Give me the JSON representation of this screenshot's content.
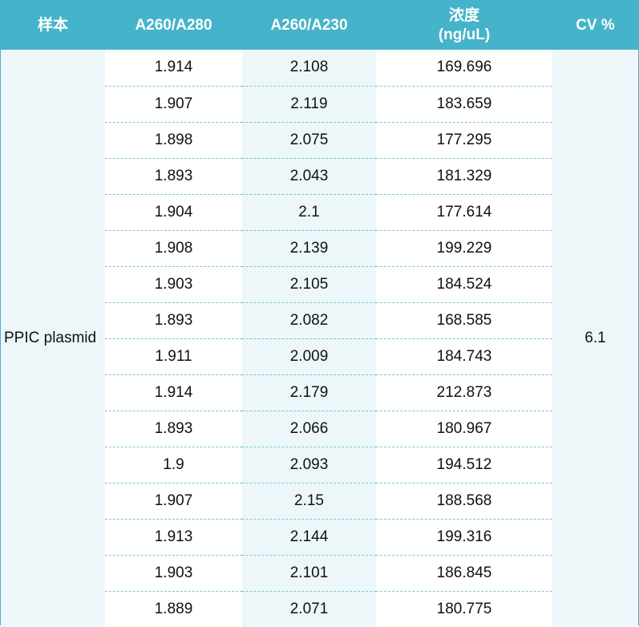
{
  "headers": {
    "sample": "样本",
    "a260_a280": "A260/A280",
    "a260_a230": "A260/A230",
    "concentration_line1": "浓度",
    "concentration_line2": "(ng/uL)",
    "cv": "CV %"
  },
  "sample_name": "PPIC plasmid",
  "cv_value": "6.1",
  "rows": [
    {
      "a260_a280": "1.914",
      "a260_a230": "2.108",
      "concentration": "169.696"
    },
    {
      "a260_a280": "1.907",
      "a260_a230": "2.119",
      "concentration": "183.659"
    },
    {
      "a260_a280": "1.898",
      "a260_a230": "2.075",
      "concentration": "177.295"
    },
    {
      "a260_a280": "1.893",
      "a260_a230": "2.043",
      "concentration": "181.329"
    },
    {
      "a260_a280": "1.904",
      "a260_a230": "2.1",
      "concentration": "177.614"
    },
    {
      "a260_a280": "1.908",
      "a260_a230": "2.139",
      "concentration": "199.229"
    },
    {
      "a260_a280": "1.903",
      "a260_a230": "2.105",
      "concentration": "184.524"
    },
    {
      "a260_a280": "1.893",
      "a260_a230": "2.082",
      "concentration": "168.585"
    },
    {
      "a260_a280": "1.911",
      "a260_a230": "2.009",
      "concentration": "184.743"
    },
    {
      "a260_a280": "1.914",
      "a260_a230": "2.179",
      "concentration": "212.873"
    },
    {
      "a260_a280": "1.893",
      "a260_a230": "2.066",
      "concentration": "180.967"
    },
    {
      "a260_a280": "1.9",
      "a260_a230": "2.093",
      "concentration": "194.512"
    },
    {
      "a260_a280": "1.907",
      "a260_a230": "2.15",
      "concentration": "188.568"
    },
    {
      "a260_a280": "1.913",
      "a260_a230": "2.144",
      "concentration": "199.316"
    },
    {
      "a260_a280": "1.903",
      "a260_a230": "2.101",
      "concentration": "186.845"
    },
    {
      "a260_a280": "1.889",
      "a260_a230": "2.071",
      "concentration": "180.775"
    }
  ],
  "colors": {
    "header_bg": "#45b3c9",
    "header_text": "#ffffff",
    "band_bg": "#edf7f9",
    "white_bg": "#ffffff",
    "divider": "#7fc6d6"
  }
}
